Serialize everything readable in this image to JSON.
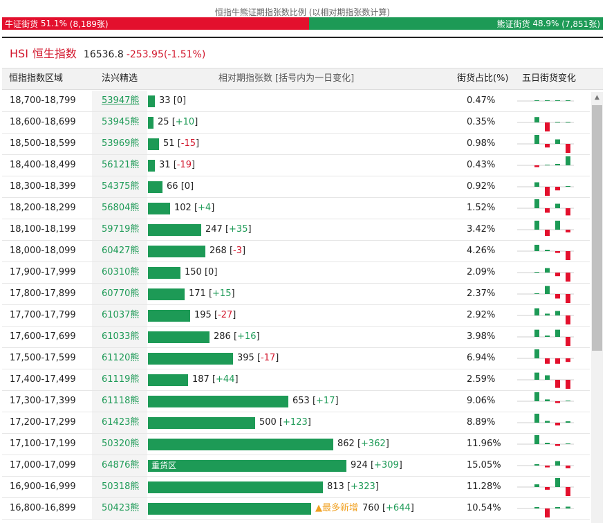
{
  "ratio": {
    "title": "恒指牛熊证期指张数比例 (以相对期指张数计算)",
    "bull_label": "牛证街货",
    "bull_pct": "51.1%",
    "bull_count": "(8,189张)",
    "bear_label": "熊证街货",
    "bear_pct": "48.9%",
    "bear_count": "(7,851张)",
    "bull_fraction": 0.511,
    "colors": {
      "bull": "#e3102d",
      "bear": "#1d9a56"
    }
  },
  "index": {
    "symbol": "HSI",
    "name": "恒生指数",
    "price": "16536.8",
    "change": "-253.95(-1.51%)"
  },
  "header": {
    "range": "恒指指数区域",
    "pick": "法兴精选",
    "qty": "相对期指张数 [括号内为一日变化]",
    "ratio": "街货占比(%)",
    "five_day": "五日街货变化"
  },
  "icons": {
    "scroll_up": "triangle-up-icon",
    "new_marker": "triangle-up-icon"
  },
  "rows": [
    {
      "range": "18,700-18,799",
      "pick": "53947熊",
      "pick_link": true,
      "qty": 33,
      "qty_text": "33",
      "chg": "[0]",
      "chg_sign": "neu",
      "ratio": "0.47%",
      "five": [
        0,
        0,
        0,
        0,
        0
      ]
    },
    {
      "range": "18,600-18,699",
      "pick": "53945熊",
      "qty": 25,
      "qty_text": "25",
      "chg": "[+10]",
      "chg_sign": "pos",
      "ratio": "0.35%",
      "five": [
        0.6,
        -1.0,
        0,
        0,
        0.6
      ]
    },
    {
      "range": "18,500-18,599",
      "pick": "53969熊",
      "qty": 51,
      "qty_text": "51",
      "chg": "[-15]",
      "chg_sign": "neg",
      "ratio": "0.98%",
      "five": [
        1.0,
        -0.4,
        0.5,
        -1.0,
        0
      ]
    },
    {
      "range": "18,400-18,499",
      "pick": "56121熊",
      "qty": 31,
      "qty_text": "31",
      "chg": "[-19]",
      "chg_sign": "neg",
      "ratio": "0.43%",
      "five": [
        -0.2,
        0,
        0.1,
        1.0,
        -1.0
      ]
    },
    {
      "range": "18,300-18,399",
      "pick": "54375熊",
      "qty": 66,
      "qty_text": "66",
      "chg": "[0]",
      "chg_sign": "neu",
      "ratio": "0.92%",
      "five": [
        0.5,
        -1.0,
        -0.4,
        0,
        0
      ]
    },
    {
      "range": "18,200-18,299",
      "pick": "56804熊",
      "qty": 102,
      "qty_text": "102",
      "chg": "[+4]",
      "chg_sign": "pos",
      "ratio": "1.52%",
      "five": [
        1.0,
        -0.5,
        0.5,
        -0.8,
        0.3
      ]
    },
    {
      "range": "18,100-18,199",
      "pick": "59719熊",
      "qty": 247,
      "qty_text": "247",
      "chg": "[+35]",
      "chg_sign": "pos",
      "ratio": "3.42%",
      "five": [
        1.0,
        -0.7,
        1.0,
        -0.3,
        1.0
      ]
    },
    {
      "range": "18,000-18,099",
      "pick": "60427熊",
      "qty": 268,
      "qty_text": "268",
      "chg": "[-3]",
      "chg_sign": "neg",
      "ratio": "4.26%",
      "five": [
        0.7,
        0.1,
        -0.2,
        -1.0,
        -0.2
      ]
    },
    {
      "range": "17,900-17,999",
      "pick": "60310熊",
      "qty": 150,
      "qty_text": "150",
      "chg": "[0]",
      "chg_sign": "neu",
      "ratio": "2.09%",
      "five": [
        0,
        0.5,
        -0.4,
        -1.0,
        0
      ]
    },
    {
      "range": "17,800-17,899",
      "pick": "60770熊",
      "qty": 171,
      "qty_text": "171",
      "chg": "[+15]",
      "chg_sign": "pos",
      "ratio": "2.37%",
      "five": [
        0,
        0.9,
        -0.5,
        -1.0,
        1.0
      ]
    },
    {
      "range": "17,700-17,799",
      "pick": "61037熊",
      "qty": 195,
      "qty_text": "195",
      "chg": "[-27]",
      "chg_sign": "neg",
      "ratio": "2.92%",
      "five": [
        0.8,
        0.2,
        0.5,
        -1.0,
        0.3
      ]
    },
    {
      "range": "17,600-17,699",
      "pick": "61033熊",
      "qty": 286,
      "qty_text": "286",
      "chg": "[+16]",
      "chg_sign": "pos",
      "ratio": "3.98%",
      "five": [
        0.8,
        0.1,
        0.8,
        -1.0,
        0.2
      ]
    },
    {
      "range": "17,500-17,599",
      "pick": "61120熊",
      "qty": 395,
      "qty_text": "395",
      "chg": "[-17]",
      "chg_sign": "neg",
      "ratio": "6.94%",
      "five": [
        1.0,
        -0.6,
        -0.6,
        -0.4,
        -0.3
      ]
    },
    {
      "range": "17,400-17,499",
      "pick": "61119熊",
      "qty": 187,
      "qty_text": "187",
      "chg": "[+44]",
      "chg_sign": "pos",
      "ratio": "2.59%",
      "five": [
        0.8,
        0.5,
        -0.9,
        -1.0,
        0.5
      ]
    },
    {
      "range": "17,300-17,399",
      "pick": "61118熊",
      "qty": 653,
      "qty_text": "653",
      "chg": "[+17]",
      "chg_sign": "pos",
      "ratio": "9.06%",
      "five": [
        1.0,
        0.2,
        -0.2,
        0,
        0.1
      ]
    },
    {
      "range": "17,200-17,299",
      "pick": "61423熊",
      "qty": 500,
      "qty_text": "500",
      "chg": "[+123]",
      "chg_sign": "pos",
      "ratio": "8.89%",
      "five": [
        1.0,
        0.2,
        -0.3,
        0.1,
        1.0
      ]
    },
    {
      "range": "17,100-17,199",
      "pick": "50320熊",
      "qty": 862,
      "qty_text": "862",
      "chg": "[+362]",
      "chg_sign": "pos",
      "ratio": "11.96%",
      "five": [
        1.0,
        0.1,
        -0.2,
        0,
        1.0
      ]
    },
    {
      "range": "17,000-17,099",
      "pick": "64876熊",
      "qty": 924,
      "qty_text": "924",
      "chg": "[+309]",
      "chg_sign": "pos",
      "ratio": "15.05%",
      "five": [
        0.1,
        -0.2,
        0.5,
        -0.3,
        1.0
      ],
      "inner_label": "重货区"
    },
    {
      "range": "16,900-16,999",
      "pick": "50318熊",
      "qty": 813,
      "qty_text": "813",
      "chg": "[+323]",
      "chg_sign": "pos",
      "ratio": "11.28%",
      "five": [
        0.3,
        -0.3,
        1.0,
        -1.0,
        1.0
      ]
    },
    {
      "range": "16,800-16,899",
      "pick": "50423熊",
      "qty": 760,
      "qty_text": "760",
      "chg": "[+644]",
      "chg_sign": "pos",
      "ratio": "10.54%",
      "five": [
        0.1,
        -1.0,
        0.1,
        0.2,
        1.0
      ],
      "tag": "▲最多新增"
    }
  ]
}
